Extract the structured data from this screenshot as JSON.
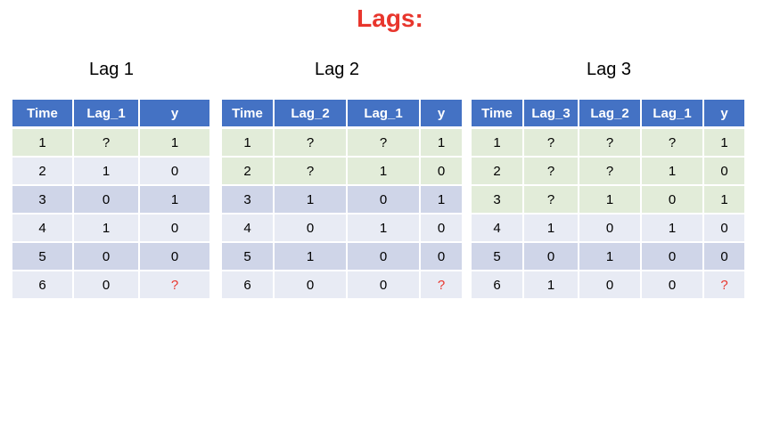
{
  "title": "Lags:",
  "tables": [
    {
      "caption": "Lag 1",
      "headers": [
        "Time",
        "Lag_1",
        "y"
      ],
      "rows": [
        [
          "1",
          "?",
          "1"
        ],
        [
          "2",
          "1",
          "0"
        ],
        [
          "3",
          "0",
          "1"
        ],
        [
          "4",
          "1",
          "0"
        ],
        [
          "5",
          "0",
          "0"
        ],
        [
          "6",
          "0",
          "?"
        ]
      ]
    },
    {
      "caption": "Lag 2",
      "headers": [
        "Time",
        "Lag_2",
        "Lag_1",
        "y"
      ],
      "rows": [
        [
          "1",
          "?",
          "?",
          "1"
        ],
        [
          "2",
          "?",
          "1",
          "0"
        ],
        [
          "3",
          "1",
          "0",
          "1"
        ],
        [
          "4",
          "0",
          "1",
          "0"
        ],
        [
          "5",
          "1",
          "0",
          "0"
        ],
        [
          "6",
          "0",
          "0",
          "?"
        ]
      ]
    },
    {
      "caption": "Lag 3",
      "headers": [
        "Time",
        "Lag_3",
        "Lag_2",
        "Lag_1",
        "y"
      ],
      "rows": [
        [
          "1",
          "?",
          "?",
          "?",
          "1"
        ],
        [
          "2",
          "?",
          "?",
          "1",
          "0"
        ],
        [
          "3",
          "?",
          "1",
          "0",
          "1"
        ],
        [
          "4",
          "1",
          "0",
          "1",
          "0"
        ],
        [
          "5",
          "0",
          "1",
          "0",
          "0"
        ],
        [
          "6",
          "1",
          "0",
          "0",
          "?"
        ]
      ]
    }
  ],
  "colors": {
    "title": "#e8362d",
    "header_bg": "#4472c4",
    "unknown_row_bg": "#e2ecd9",
    "row_light_bg": "#e8ebf4",
    "row_dark_bg": "#cfd5e8",
    "prediction_mark": "#e8362d"
  }
}
